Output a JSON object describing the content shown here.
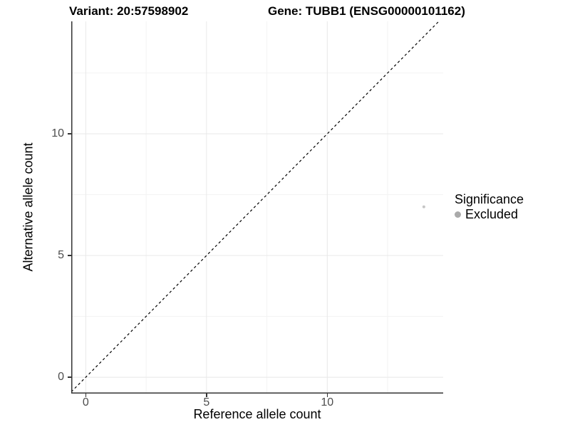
{
  "chart_data": {
    "type": "scatter",
    "title_left": "Variant: 20:57598902",
    "title_right": "Gene: TUBB1 (ENSG00000101162)",
    "xlabel": "Reference allele count",
    "ylabel": "Alternative allele count",
    "xlim": [
      -0.6,
      14.8
    ],
    "ylim": [
      -0.67,
      14.62
    ],
    "x_ticks": [
      0,
      5,
      10
    ],
    "y_ticks": [
      0,
      5,
      10
    ],
    "x_minor_ticks": [
      2.5,
      7.5,
      12.5
    ],
    "y_minor_ticks": [
      2.5,
      7.5,
      12.5
    ],
    "grid": true,
    "identity_line": {
      "slope": 1,
      "intercept": 0,
      "style": "dashed",
      "color": "#000000"
    },
    "series": [
      {
        "name": "Excluded",
        "color": "#c6c6c6",
        "point_radius": 2,
        "points": [
          {
            "x": 14,
            "y": 7
          }
        ]
      }
    ],
    "legend": {
      "title": "Significance",
      "position": "right",
      "entries": [
        {
          "label": "Excluded",
          "color": "#aaaaaa"
        }
      ]
    }
  },
  "colors": {
    "axis_line": "#333333",
    "grid_major": "#e8e8e8",
    "grid_minor": "#f3f3f3",
    "tick_text": "#4d4d4d",
    "title_text": "#000000"
  }
}
